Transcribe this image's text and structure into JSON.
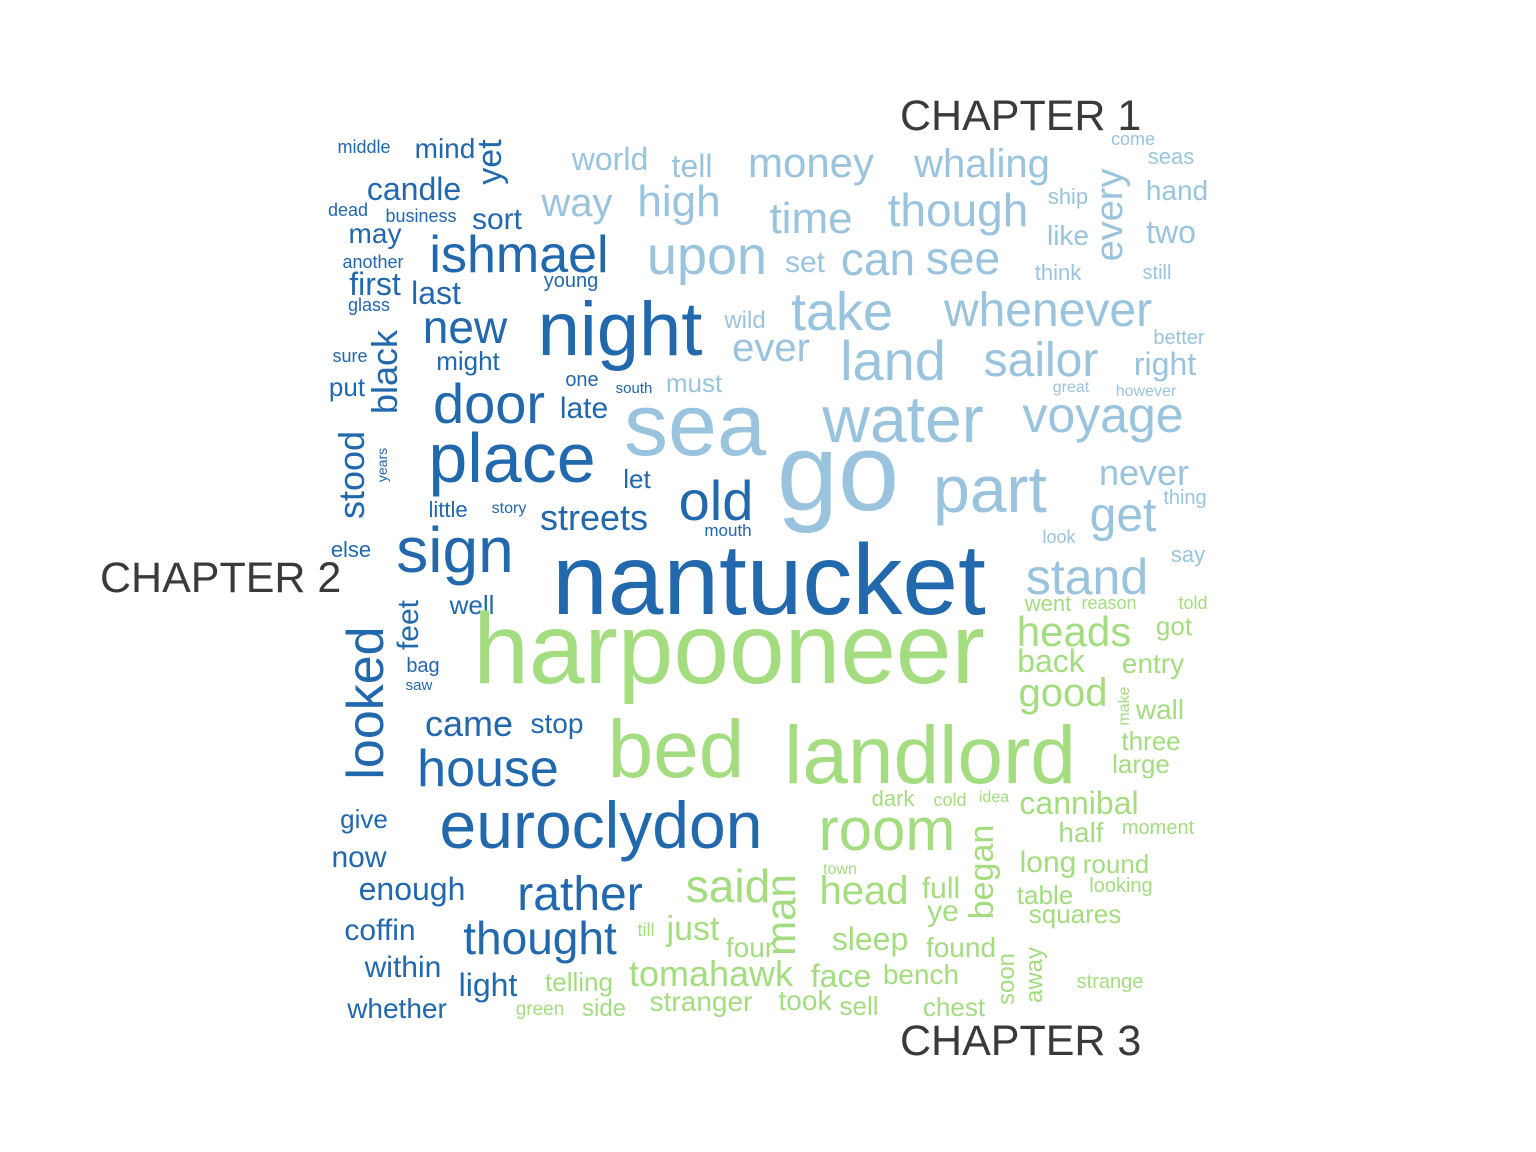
{
  "chart_data": {
    "type": "wordcloud",
    "colors": {
      "CHAPTER 1": "#9ac4de",
      "CHAPTER 2": "#2268ad",
      "CHAPTER 3": "#a4dc80",
      "label": "#3a3a3a"
    },
    "groups": [
      {
        "name": "CHAPTER 1"
      },
      {
        "name": "CHAPTER 2"
      },
      {
        "name": "CHAPTER 3"
      }
    ],
    "words": [
      {
        "text": "sea",
        "group": "CHAPTER 1",
        "size": 88
      },
      {
        "text": "go",
        "group": "CHAPTER 1",
        "size": 110
      },
      {
        "text": "water",
        "group": "CHAPTER 1",
        "size": 66
      },
      {
        "text": "part",
        "group": "CHAPTER 1",
        "size": 66
      },
      {
        "text": "voyage",
        "group": "CHAPTER 1",
        "size": 50
      },
      {
        "text": "land",
        "group": "CHAPTER 1",
        "size": 56
      },
      {
        "text": "take",
        "group": "CHAPTER 1",
        "size": 54
      },
      {
        "text": "whenever",
        "group": "CHAPTER 1",
        "size": 48
      },
      {
        "text": "upon",
        "group": "CHAPTER 1",
        "size": 54
      },
      {
        "text": "sailor",
        "group": "CHAPTER 1",
        "size": 48
      },
      {
        "text": "can",
        "group": "CHAPTER 1",
        "size": 46
      },
      {
        "text": "see",
        "group": "CHAPTER 1",
        "size": 46
      },
      {
        "text": "though",
        "group": "CHAPTER 1",
        "size": 46
      },
      {
        "text": "time",
        "group": "CHAPTER 1",
        "size": 44
      },
      {
        "text": "high",
        "group": "CHAPTER 1",
        "size": 44
      },
      {
        "text": "money",
        "group": "CHAPTER 1",
        "size": 42
      },
      {
        "text": "whaling",
        "group": "CHAPTER 1",
        "size": 40
      },
      {
        "text": "way",
        "group": "CHAPTER 1",
        "size": 40
      },
      {
        "text": "ever",
        "group": "CHAPTER 1",
        "size": 40
      },
      {
        "text": "every",
        "group": "CHAPTER 1",
        "size": 38
      },
      {
        "text": "stand",
        "group": "CHAPTER 1",
        "size": 50
      },
      {
        "text": "get",
        "group": "CHAPTER 1",
        "size": 48
      },
      {
        "text": "never",
        "group": "CHAPTER 1",
        "size": 36
      },
      {
        "text": "world",
        "group": "CHAPTER 1",
        "size": 32
      },
      {
        "text": "tell",
        "group": "CHAPTER 1",
        "size": 32
      },
      {
        "text": "right",
        "group": "CHAPTER 1",
        "size": 32
      },
      {
        "text": "two",
        "group": "CHAPTER 1",
        "size": 32
      },
      {
        "text": "set",
        "group": "CHAPTER 1",
        "size": 30
      },
      {
        "text": "hand",
        "group": "CHAPTER 1",
        "size": 28
      },
      {
        "text": "like",
        "group": "CHAPTER 1",
        "size": 28
      },
      {
        "text": "must",
        "group": "CHAPTER 1",
        "size": 26
      },
      {
        "text": "wild",
        "group": "CHAPTER 1",
        "size": 24
      },
      {
        "text": "think",
        "group": "CHAPTER 1",
        "size": 22
      },
      {
        "text": "seas",
        "group": "CHAPTER 1",
        "size": 22
      },
      {
        "text": "ship",
        "group": "CHAPTER 1",
        "size": 22
      },
      {
        "text": "still",
        "group": "CHAPTER 1",
        "size": 20
      },
      {
        "text": "better",
        "group": "CHAPTER 1",
        "size": 20
      },
      {
        "text": "thing",
        "group": "CHAPTER 1",
        "size": 20
      },
      {
        "text": "say",
        "group": "CHAPTER 1",
        "size": 22
      },
      {
        "text": "come",
        "group": "CHAPTER 1",
        "size": 18
      },
      {
        "text": "look",
        "group": "CHAPTER 1",
        "size": 18
      },
      {
        "text": "great",
        "group": "CHAPTER 1",
        "size": 16
      },
      {
        "text": "however",
        "group": "CHAPTER 1",
        "size": 16
      },
      {
        "text": "nantucket",
        "group": "CHAPTER 2",
        "size": 100
      },
      {
        "text": "night",
        "group": "CHAPTER 2",
        "size": 76
      },
      {
        "text": "place",
        "group": "CHAPTER 2",
        "size": 70
      },
      {
        "text": "euroclydon",
        "group": "CHAPTER 2",
        "size": 66
      },
      {
        "text": "sign",
        "group": "CHAPTER 2",
        "size": 64
      },
      {
        "text": "door",
        "group": "CHAPTER 2",
        "size": 56
      },
      {
        "text": "old",
        "group": "CHAPTER 2",
        "size": 56
      },
      {
        "text": "ishmael",
        "group": "CHAPTER 2",
        "size": 52
      },
      {
        "text": "house",
        "group": "CHAPTER 2",
        "size": 52
      },
      {
        "text": "looked",
        "group": "CHAPTER 2",
        "size": 52
      },
      {
        "text": "rather",
        "group": "CHAPTER 2",
        "size": 48
      },
      {
        "text": "new",
        "group": "CHAPTER 2",
        "size": 46
      },
      {
        "text": "thought",
        "group": "CHAPTER 2",
        "size": 46
      },
      {
        "text": "black",
        "group": "CHAPTER 2",
        "size": 36
      },
      {
        "text": "stood",
        "group": "CHAPTER 2",
        "size": 36
      },
      {
        "text": "came",
        "group": "CHAPTER 2",
        "size": 36
      },
      {
        "text": "streets",
        "group": "CHAPTER 2",
        "size": 36
      },
      {
        "text": "yet",
        "group": "CHAPTER 2",
        "size": 34
      },
      {
        "text": "candle",
        "group": "CHAPTER 2",
        "size": 32
      },
      {
        "text": "first",
        "group": "CHAPTER 2",
        "size": 32
      },
      {
        "text": "last",
        "group": "CHAPTER 2",
        "size": 32
      },
      {
        "text": "enough",
        "group": "CHAPTER 2",
        "size": 32
      },
      {
        "text": "light",
        "group": "CHAPTER 2",
        "size": 32
      },
      {
        "text": "sort",
        "group": "CHAPTER 2",
        "size": 30
      },
      {
        "text": "late",
        "group": "CHAPTER 2",
        "size": 30
      },
      {
        "text": "feet",
        "group": "CHAPTER 2",
        "size": 30
      },
      {
        "text": "now",
        "group": "CHAPTER 2",
        "size": 30
      },
      {
        "text": "coffin",
        "group": "CHAPTER 2",
        "size": 30
      },
      {
        "text": "within",
        "group": "CHAPTER 2",
        "size": 30
      },
      {
        "text": "whether",
        "group": "CHAPTER 2",
        "size": 28
      },
      {
        "text": "mind",
        "group": "CHAPTER 2",
        "size": 28
      },
      {
        "text": "may",
        "group": "CHAPTER 2",
        "size": 28
      },
      {
        "text": "stop",
        "group": "CHAPTER 2",
        "size": 28
      },
      {
        "text": "put",
        "group": "CHAPTER 2",
        "size": 26
      },
      {
        "text": "might",
        "group": "CHAPTER 2",
        "size": 26
      },
      {
        "text": "let",
        "group": "CHAPTER 2",
        "size": 26
      },
      {
        "text": "give",
        "group": "CHAPTER 2",
        "size": 26
      },
      {
        "text": "well",
        "group": "CHAPTER 2",
        "size": 26
      },
      {
        "text": "little",
        "group": "CHAPTER 2",
        "size": 22
      },
      {
        "text": "else",
        "group": "CHAPTER 2",
        "size": 22
      },
      {
        "text": "bag",
        "group": "CHAPTER 2",
        "size": 20
      },
      {
        "text": "one",
        "group": "CHAPTER 2",
        "size": 20
      },
      {
        "text": "young",
        "group": "CHAPTER 2",
        "size": 20
      },
      {
        "text": "another",
        "group": "CHAPTER 2",
        "size": 18
      },
      {
        "text": "glass",
        "group": "CHAPTER 2",
        "size": 18
      },
      {
        "text": "sure",
        "group": "CHAPTER 2",
        "size": 18
      },
      {
        "text": "middle",
        "group": "CHAPTER 2",
        "size": 18
      },
      {
        "text": "dead",
        "group": "CHAPTER 2",
        "size": 18
      },
      {
        "text": "business",
        "group": "CHAPTER 2",
        "size": 18
      },
      {
        "text": "mouth",
        "group": "CHAPTER 2",
        "size": 17
      },
      {
        "text": "story",
        "group": "CHAPTER 2",
        "size": 16
      },
      {
        "text": "south",
        "group": "CHAPTER 2",
        "size": 15
      },
      {
        "text": "saw",
        "group": "CHAPTER 2",
        "size": 15
      },
      {
        "text": "years",
        "group": "CHAPTER 2",
        "size": 14
      },
      {
        "text": "harpooneer",
        "group": "CHAPTER 3",
        "size": 100
      },
      {
        "text": "bed",
        "group": "CHAPTER 3",
        "size": 82
      },
      {
        "text": "landlord",
        "group": "CHAPTER 3",
        "size": 82
      },
      {
        "text": "room",
        "group": "CHAPTER 3",
        "size": 60
      },
      {
        "text": "said",
        "group": "CHAPTER 3",
        "size": 46
      },
      {
        "text": "heads",
        "group": "CHAPTER 3",
        "size": 42
      },
      {
        "text": "man",
        "group": "CHAPTER 3",
        "size": 42
      },
      {
        "text": "good",
        "group": "CHAPTER 3",
        "size": 40
      },
      {
        "text": "head",
        "group": "CHAPTER 3",
        "size": 40
      },
      {
        "text": "tomahawk",
        "group": "CHAPTER 3",
        "size": 36
      },
      {
        "text": "began",
        "group": "CHAPTER 3",
        "size": 34
      },
      {
        "text": "just",
        "group": "CHAPTER 3",
        "size": 34
      },
      {
        "text": "back",
        "group": "CHAPTER 3",
        "size": 32
      },
      {
        "text": "cannibal",
        "group": "CHAPTER 3",
        "size": 32
      },
      {
        "text": "sleep",
        "group": "CHAPTER 3",
        "size": 32
      },
      {
        "text": "face",
        "group": "CHAPTER 3",
        "size": 32
      },
      {
        "text": "full",
        "group": "CHAPTER 3",
        "size": 30
      },
      {
        "text": "ye",
        "group": "CHAPTER 3",
        "size": 30
      },
      {
        "text": "long",
        "group": "CHAPTER 3",
        "size": 30
      },
      {
        "text": "half",
        "group": "CHAPTER 3",
        "size": 28
      },
      {
        "text": "found",
        "group": "CHAPTER 3",
        "size": 28
      },
      {
        "text": "four",
        "group": "CHAPTER 3",
        "size": 28
      },
      {
        "text": "bench",
        "group": "CHAPTER 3",
        "size": 28
      },
      {
        "text": "stranger",
        "group": "CHAPTER 3",
        "size": 28
      },
      {
        "text": "took",
        "group": "CHAPTER 3",
        "size": 28
      },
      {
        "text": "entry",
        "group": "CHAPTER 3",
        "size": 28
      },
      {
        "text": "wall",
        "group": "CHAPTER 3",
        "size": 28
      },
      {
        "text": "got",
        "group": "CHAPTER 3",
        "size": 26
      },
      {
        "text": "round",
        "group": "CHAPTER 3",
        "size": 26
      },
      {
        "text": "table",
        "group": "CHAPTER 3",
        "size": 26
      },
      {
        "text": "squares",
        "group": "CHAPTER 3",
        "size": 26
      },
      {
        "text": "three",
        "group": "CHAPTER 3",
        "size": 26
      },
      {
        "text": "large",
        "group": "CHAPTER 3",
        "size": 26
      },
      {
        "text": "telling",
        "group": "CHAPTER 3",
        "size": 26
      },
      {
        "text": "chest",
        "group": "CHAPTER 3",
        "size": 26
      },
      {
        "text": "sell",
        "group": "CHAPTER 3",
        "size": 26
      },
      {
        "text": "soon",
        "group": "CHAPTER 3",
        "size": 24
      },
      {
        "text": "away",
        "group": "CHAPTER 3",
        "size": 24
      },
      {
        "text": "side",
        "group": "CHAPTER 3",
        "size": 24
      },
      {
        "text": "dark",
        "group": "CHAPTER 3",
        "size": 22
      },
      {
        "text": "went",
        "group": "CHAPTER 3",
        "size": 22
      },
      {
        "text": "moment",
        "group": "CHAPTER 3",
        "size": 20
      },
      {
        "text": "looking",
        "group": "CHAPTER 3",
        "size": 20
      },
      {
        "text": "strange",
        "group": "CHAPTER 3",
        "size": 20
      },
      {
        "text": "green",
        "group": "CHAPTER 3",
        "size": 19
      },
      {
        "text": "cold",
        "group": "CHAPTER 3",
        "size": 18
      },
      {
        "text": "till",
        "group": "CHAPTER 3",
        "size": 18
      },
      {
        "text": "reason",
        "group": "CHAPTER 3",
        "size": 18
      },
      {
        "text": "told",
        "group": "CHAPTER 3",
        "size": 18
      },
      {
        "text": "make",
        "group": "CHAPTER 3",
        "size": 16
      },
      {
        "text": "idea",
        "group": "CHAPTER 3",
        "size": 16
      },
      {
        "text": "town",
        "group": "CHAPTER 3",
        "size": 16
      }
    ]
  }
}
